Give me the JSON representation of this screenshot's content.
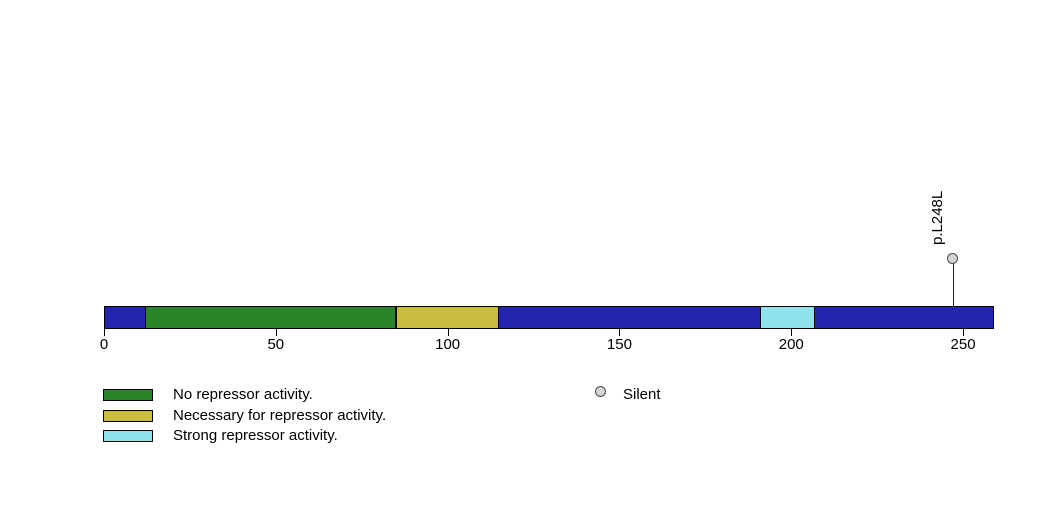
{
  "chart_data": {
    "type": "lollipop",
    "title": "",
    "description": "Protein functional-domain track with one mutation lollipop",
    "protein_length": 259,
    "x_axis": {
      "range": [
        0,
        259
      ],
      "ticks": [
        0,
        50,
        100,
        150,
        200,
        250
      ]
    },
    "backbone": {
      "color": "#2424AE",
      "outline_color": "#000000"
    },
    "domains": [
      {
        "label": "No repressor activity.",
        "start": 12,
        "end": 85,
        "color": "#2A852A"
      },
      {
        "label": "Necessary for repressor activity.",
        "start": 85,
        "end": 115,
        "color": "#C9BC3E"
      },
      {
        "label": "Strong repressor activity.",
        "start": 191,
        "end": 207,
        "color": "#8EE3ED"
      }
    ],
    "mutations": [
      {
        "label": "p.L248L",
        "position": 247,
        "type": "Silent",
        "fill": "#D3D3D3",
        "stroke": "#4D4D4D"
      }
    ],
    "mutation_legend": [
      {
        "label": "Silent",
        "fill": "#D3D3D3",
        "stroke": "#4D4D4D"
      }
    ],
    "legend_position": "bottom-left",
    "grid": "off"
  }
}
